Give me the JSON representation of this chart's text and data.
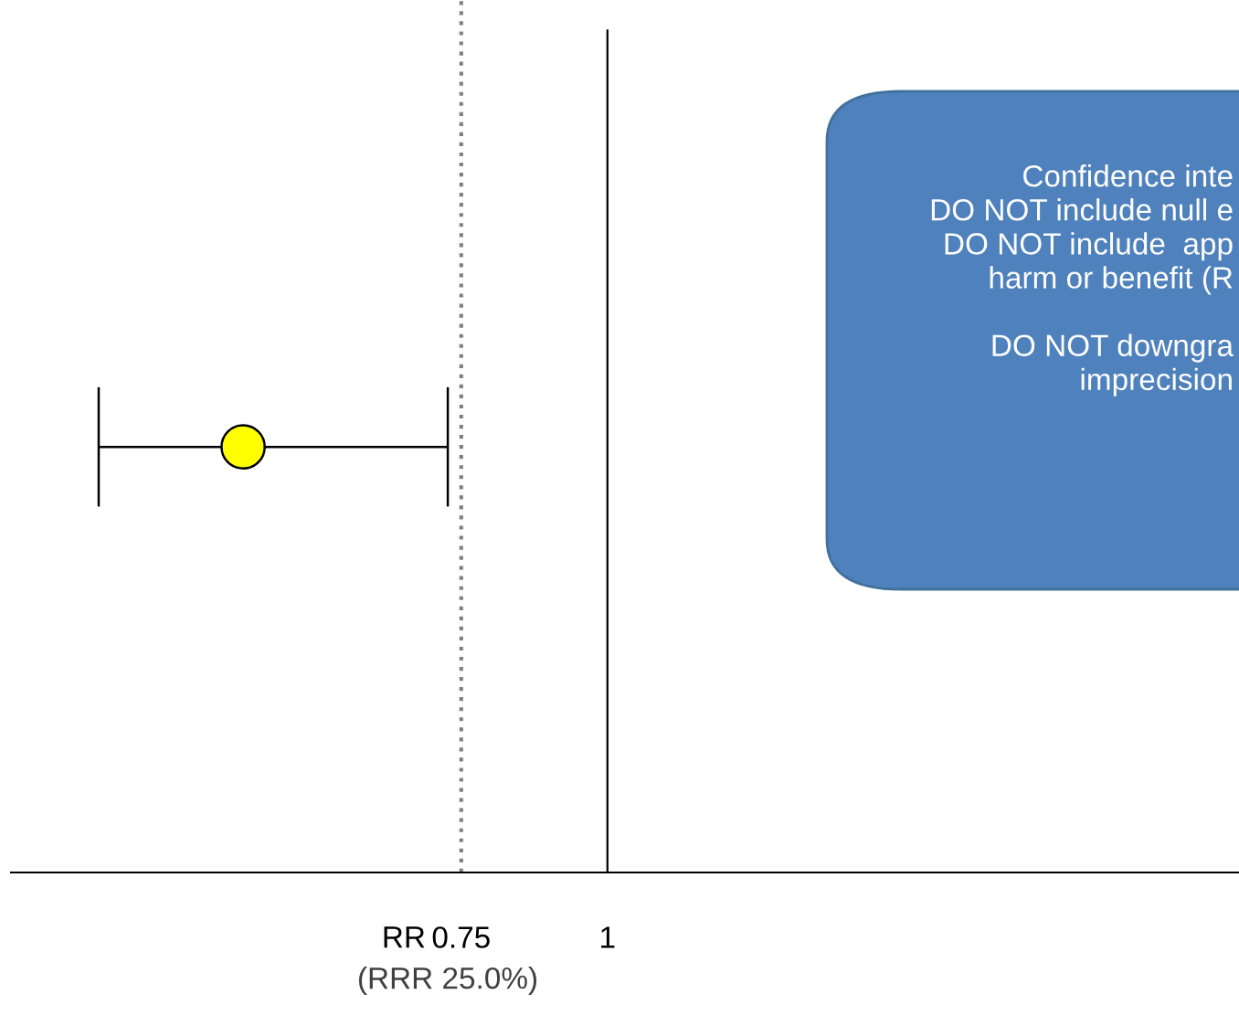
{
  "chart_data": {
    "type": "scatter",
    "orientation": "horizontal",
    "categories": [
      null
    ],
    "values": [
      0.377
    ],
    "errors": [
      [
        0.13,
        0.727
      ]
    ],
    "color": "#ffff00",
    "marker": "circle",
    "xlim": [
      -0.02,
      2.08
    ],
    "xticks": [
      0.75,
      1
    ],
    "tick_labels": "x",
    "grid": false,
    "ref_lines": [
      {
        "axis": "x",
        "value": 0.75,
        "color": "#808080",
        "line_style": "dotted"
      },
      {
        "axis": "x",
        "value": 1,
        "color": "#000000",
        "line_style": "solid"
      }
    ],
    "annotations": [
      "(RRR 25.0%)",
      "RR",
      "Confidence inte\nDO NOT include null e\nDO NOT include  app\nharm or benefit (R\n\nDO NOT downgra\nimprecision"
    ]
  }
}
